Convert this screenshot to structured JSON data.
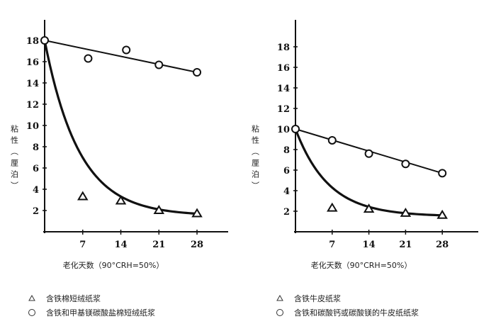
{
  "chart_data": [
    {
      "type": "scatter",
      "ylabel": "粘性（厘泊）",
      "xlabel": "老化天数（90°CRH=50%）",
      "x_ticks": [
        "7",
        "14",
        "21",
        "28"
      ],
      "y_ticks": [
        "2",
        "4",
        "6",
        "8",
        "10",
        "12",
        "14",
        "16",
        "18"
      ],
      "xlim": [
        0,
        40
      ],
      "ylim": [
        0,
        20
      ],
      "series": [
        {
          "name": "含铁棉短绒纸浆",
          "marker": "triangle",
          "x": [
            0,
            7,
            14,
            21,
            28
          ],
          "y": [
            18,
            3.3,
            2.9,
            2.0,
            1.7
          ],
          "fit": "exponential-decay"
        },
        {
          "name": "含铁和甲基镁碳酸盐棉短绒纸浆",
          "marker": "circle",
          "x": [
            0,
            8,
            15,
            21,
            28
          ],
          "y": [
            18,
            16.3,
            17.1,
            15.7,
            15.0
          ],
          "fit": "linear"
        }
      ]
    },
    {
      "type": "scatter",
      "ylabel": "粘性（厘泊）",
      "xlabel": "老化天数（90°CRH=50%）",
      "x_ticks": [
        "7",
        "14",
        "21",
        "28"
      ],
      "y_ticks": [
        "2",
        "4",
        "6",
        "8",
        "10",
        "12",
        "14",
        "16",
        "18"
      ],
      "xlim": [
        0,
        40
      ],
      "ylim": [
        0,
        20
      ],
      "series": [
        {
          "name": "含铁牛皮纸浆",
          "marker": "triangle",
          "x": [
            0,
            7,
            14,
            21,
            28
          ],
          "y": [
            10,
            2.3,
            2.2,
            1.8,
            1.6
          ],
          "fit": "exponential-decay"
        },
        {
          "name": "含铁和碳酸钙或碳酸镁的牛皮纸纸浆",
          "marker": "circle",
          "x": [
            0,
            7,
            14,
            21,
            28
          ],
          "y": [
            10,
            8.9,
            7.6,
            6.6,
            5.7
          ],
          "fit": "linear"
        }
      ]
    }
  ]
}
